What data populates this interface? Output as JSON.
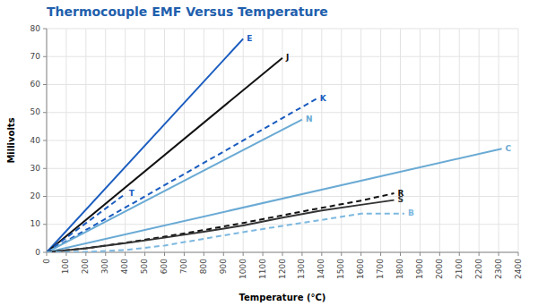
{
  "chart_data": {
    "type": "line",
    "title": "Thermocouple EMF Versus Temperature",
    "title_color": "#1f5fad",
    "x_label": "Temperature (°C)",
    "y_label": "Millivolts",
    "xlim": [
      0,
      2400
    ],
    "ylim": [
      0,
      80
    ],
    "xticks": [
      0,
      100,
      200,
      300,
      400,
      500,
      600,
      700,
      800,
      900,
      1000,
      1100,
      1200,
      1300,
      1400,
      1500,
      1600,
      1700,
      1800,
      1900,
      2000,
      2100,
      2200,
      2300,
      2400
    ],
    "yticks": [
      0,
      10,
      20,
      30,
      40,
      50,
      60,
      70,
      80
    ],
    "grid": true,
    "series": [
      {
        "name": "E",
        "color": "#1a5cbf",
        "line_style": "solid",
        "x": [
          0,
          1000
        ],
        "values": [
          0,
          76.37
        ]
      },
      {
        "name": "J",
        "color": "#111111",
        "line_style": "solid",
        "x": [
          0,
          1200
        ],
        "values": [
          0,
          69.55
        ]
      },
      {
        "name": "K",
        "color": "#1a5cbf",
        "line_style": "dashed",
        "x": [
          0,
          1372
        ],
        "values": [
          0,
          54.87
        ]
      },
      {
        "name": "N",
        "color": "#6aaad4",
        "line_style": "solid",
        "x": [
          0,
          1300
        ],
        "values": [
          0,
          47.51
        ]
      },
      {
        "name": "T",
        "color": "#1a5cbf",
        "line_style": "dashed",
        "x": [
          0,
          400
        ],
        "values": [
          0,
          20.87
        ]
      },
      {
        "name": "C",
        "color": "#6aaad4",
        "line_style": "solid",
        "x": [
          0,
          2316
        ],
        "values": [
          0,
          37.07
        ]
      },
      {
        "name": "R",
        "color": "#111111",
        "line_style": "dashed",
        "x": [
          0,
          200,
          400,
          600,
          800,
          1000,
          1200,
          1400,
          1600,
          1768
        ],
        "values": [
          0,
          1.44,
          3.41,
          5.58,
          7.95,
          10.5,
          13.23,
          15.91,
          18.5,
          21.1
        ]
      },
      {
        "name": "S",
        "color": "#333333",
        "line_style": "solid",
        "x": [
          0,
          200,
          400,
          600,
          800,
          1000,
          1200,
          1400,
          1600,
          1768
        ],
        "values": [
          0,
          1.44,
          3.25,
          5.24,
          7.35,
          9.59,
          12.43,
          14.94,
          17.0,
          18.68
        ]
      },
      {
        "name": "B",
        "color": "#7db8e0",
        "line_style": "dashed",
        "x": [
          0,
          200,
          400,
          600,
          800,
          1000,
          1200,
          1400,
          1600,
          1820
        ],
        "values": [
          0,
          0.18,
          0.79,
          2.43,
          4.83,
          7.23,
          9.45,
          11.61,
          13.82,
          13.82
        ]
      }
    ]
  }
}
